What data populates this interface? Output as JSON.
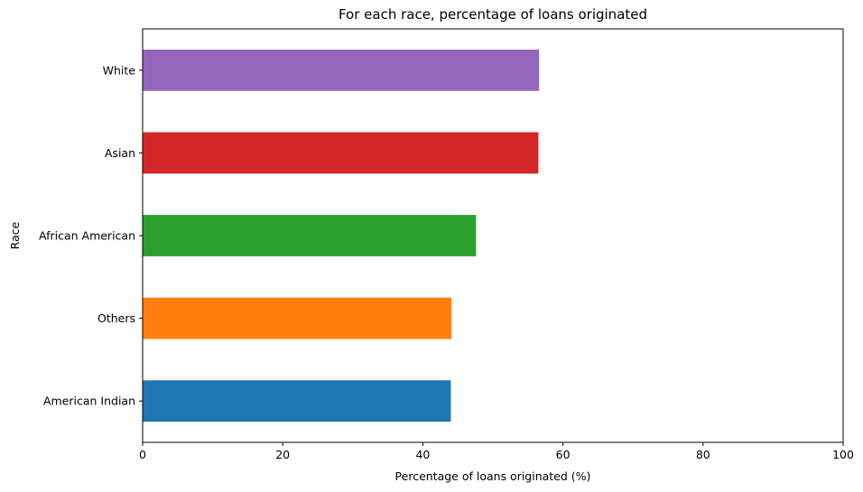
{
  "chart_data": {
    "type": "bar",
    "orientation": "horizontal",
    "title": "For each race, percentage of loans originated",
    "xlabel": "Percentage of loans originated (%)",
    "ylabel": "Race",
    "xlim": [
      0,
      100
    ],
    "xticks": [
      0,
      20,
      40,
      60,
      80,
      100
    ],
    "categories": [
      "American Indian",
      "Others",
      "African American",
      "Asian",
      "White"
    ],
    "values": [
      44.0,
      44.1,
      47.6,
      56.5,
      56.6
    ],
    "colors": [
      "#1f77b4",
      "#ff7f0e",
      "#2ca02c",
      "#d62728",
      "#9467bd"
    ],
    "grid": false,
    "legend": false
  }
}
